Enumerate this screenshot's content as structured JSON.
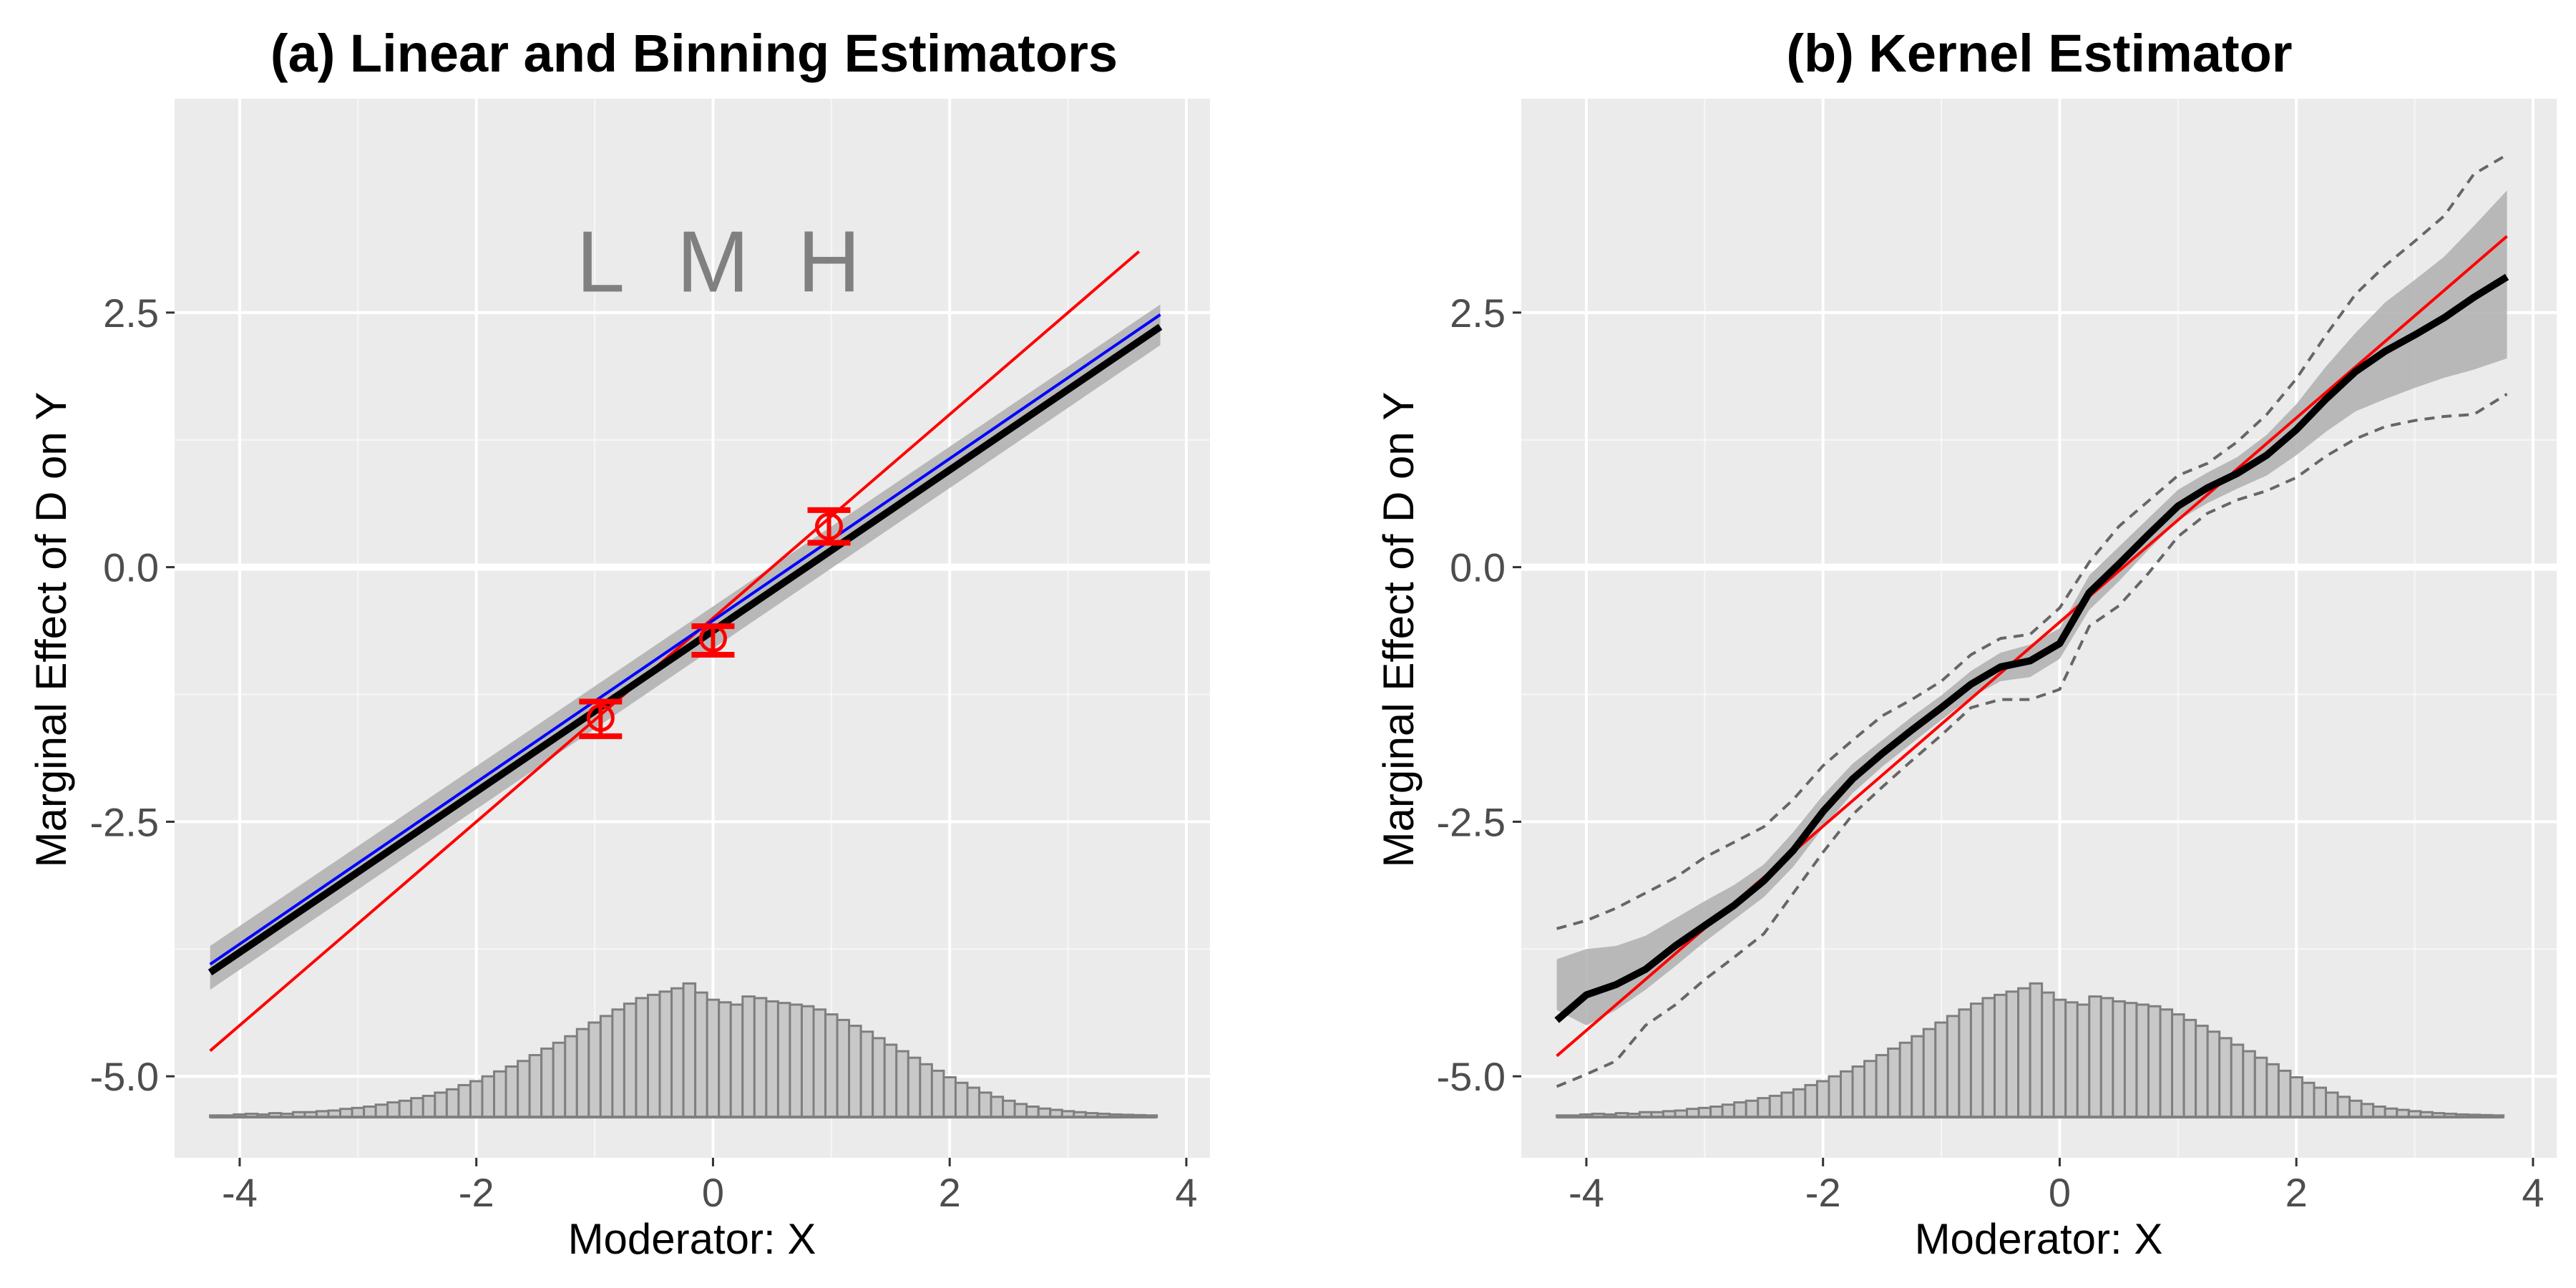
{
  "colors": {
    "panel_bg": "#ebebeb",
    "grid_major": "#ffffff",
    "estimate": "#000000",
    "ci_band": "#b3b3b3",
    "true_effect": "#ff0000",
    "linear_fit": "#0000ff",
    "hist_fill": "#c8c8c8",
    "hist_edge": "#7f7f7f",
    "bin_label": "#808080",
    "dashed_band": "#666666"
  },
  "chart_data": [
    {
      "type": "line",
      "title": "(a) Linear and Binning Estimators",
      "xlabel": "Moderator: X",
      "ylabel": "Marginal Effect of D on Y",
      "xlim": [
        -4.55,
        4.2
      ],
      "ylim": [
        -5.8,
        4.6
      ],
      "xticks": [
        -4,
        -2,
        0,
        2,
        4
      ],
      "xtick_labels": [
        "-4",
        "-2",
        "0",
        "2",
        "4"
      ],
      "yticks": [
        -5,
        -2.5,
        0,
        2.5
      ],
      "ytick_labels": [
        "-5.0",
        "-2.5",
        "0.0",
        "2.5"
      ],
      "grid": true,
      "bin_labels": [
        {
          "text": "L",
          "x": -0.95,
          "y": 3.0
        },
        {
          "text": "M",
          "x": 0.0,
          "y": 3.0
        },
        {
          "text": "H",
          "x": 0.98,
          "y": 3.0
        }
      ],
      "ribbon": {
        "x": [
          -4.25,
          3.78
        ],
        "lower": [
          -4.15,
          2.18
        ],
        "upper": [
          -3.72,
          2.58
        ]
      },
      "estimate_line": {
        "x": [
          -4.25,
          3.78
        ],
        "y": [
          -3.98,
          2.36
        ]
      },
      "linear_fit_line": {
        "x": [
          -4.25,
          3.78
        ],
        "y": [
          -3.9,
          2.48
        ]
      },
      "true_line": {
        "x": [
          -4.25,
          3.6
        ],
        "y": [
          -4.75,
          3.1
        ]
      },
      "bin_estimates": [
        {
          "x": -0.95,
          "y": -1.48,
          "lower": -1.66,
          "upper": -1.32
        },
        {
          "x": 0.0,
          "y": -0.7,
          "lower": -0.86,
          "upper": -0.58
        },
        {
          "x": 0.98,
          "y": 0.4,
          "lower": 0.24,
          "upper": 0.56
        }
      ],
      "histogram": {
        "baseline": -5.4,
        "bin_start": -4.25,
        "bin_width": 0.1,
        "heights": [
          0.005,
          0.005,
          0.008,
          0.01,
          0.008,
          0.012,
          0.01,
          0.015,
          0.015,
          0.018,
          0.02,
          0.025,
          0.028,
          0.032,
          0.038,
          0.045,
          0.05,
          0.058,
          0.065,
          0.075,
          0.085,
          0.098,
          0.11,
          0.125,
          0.14,
          0.155,
          0.172,
          0.19,
          0.21,
          0.228,
          0.248,
          0.27,
          0.29,
          0.31,
          0.33,
          0.348,
          0.365,
          0.375,
          0.385,
          0.395,
          0.41,
          0.382,
          0.36,
          0.352,
          0.345,
          0.37,
          0.365,
          0.355,
          0.35,
          0.345,
          0.34,
          0.33,
          0.315,
          0.298,
          0.28,
          0.262,
          0.242,
          0.222,
          0.202,
          0.182,
          0.162,
          0.142,
          0.122,
          0.105,
          0.09,
          0.075,
          0.062,
          0.05,
          0.04,
          0.032,
          0.026,
          0.022,
          0.018,
          0.015,
          0.012,
          0.01,
          0.008,
          0.007,
          0.006,
          0.005
        ]
      }
    },
    {
      "type": "line",
      "title": "(b) Kernel Estimator",
      "xlabel": "Moderator: X",
      "ylabel": "Marginal Effect of D on Y",
      "xlim": [
        -4.55,
        4.2
      ],
      "ylim": [
        -5.8,
        4.6
      ],
      "xticks": [
        -4,
        -2,
        0,
        2,
        4
      ],
      "xtick_labels": [
        "-4",
        "-2",
        "0",
        "2",
        "4"
      ],
      "yticks": [
        -5,
        -2.5,
        0,
        2.5
      ],
      "ytick_labels": [
        "-5.0",
        "-2.5",
        "0.0",
        "2.5"
      ],
      "grid": true,
      "true_line": {
        "x": [
          -4.25,
          3.78
        ],
        "y": [
          -4.8,
          3.25
        ]
      },
      "kernel": {
        "x": [
          -4.25,
          -4.0,
          -3.75,
          -3.5,
          -3.25,
          -3.0,
          -2.75,
          -2.5,
          -2.25,
          -2.0,
          -1.75,
          -1.5,
          -1.25,
          -1.0,
          -0.75,
          -0.5,
          -0.25,
          0.0,
          0.25,
          0.5,
          0.75,
          1.0,
          1.25,
          1.5,
          1.75,
          2.0,
          2.25,
          2.5,
          2.75,
          3.0,
          3.25,
          3.5,
          3.78
        ],
        "estimate": [
          -4.45,
          -4.2,
          -4.1,
          -3.95,
          -3.72,
          -3.52,
          -3.32,
          -3.08,
          -2.78,
          -2.4,
          -2.08,
          -1.83,
          -1.6,
          -1.38,
          -1.15,
          -0.98,
          -0.92,
          -0.75,
          -0.25,
          0.03,
          0.32,
          0.6,
          0.78,
          0.92,
          1.1,
          1.35,
          1.65,
          1.92,
          2.12,
          2.28,
          2.45,
          2.65,
          2.85
        ],
        "lower": [
          -4.35,
          -4.5,
          -4.35,
          -4.15,
          -3.92,
          -3.68,
          -3.46,
          -3.24,
          -2.94,
          -2.56,
          -2.22,
          -1.96,
          -1.73,
          -1.5,
          -1.28,
          -1.12,
          -1.08,
          -0.9,
          -0.42,
          -0.14,
          0.17,
          0.46,
          0.63,
          0.77,
          0.9,
          1.1,
          1.33,
          1.53,
          1.65,
          1.76,
          1.86,
          1.94,
          2.05
        ],
        "upper": [
          -3.85,
          -3.75,
          -3.72,
          -3.62,
          -3.45,
          -3.28,
          -3.12,
          -2.92,
          -2.6,
          -2.24,
          -1.93,
          -1.7,
          -1.47,
          -1.26,
          -1.02,
          -0.84,
          -0.76,
          -0.6,
          -0.08,
          0.2,
          0.48,
          0.76,
          0.93,
          1.08,
          1.3,
          1.6,
          1.97,
          2.3,
          2.6,
          2.82,
          3.05,
          3.35,
          3.7
        ],
        "dashed_lower": [
          -5.1,
          -4.98,
          -4.85,
          -4.5,
          -4.3,
          -4.05,
          -3.83,
          -3.6,
          -3.2,
          -2.8,
          -2.43,
          -2.16,
          -1.9,
          -1.65,
          -1.38,
          -1.3,
          -1.3,
          -1.2,
          -0.58,
          -0.38,
          -0.06,
          0.3,
          0.53,
          0.66,
          0.75,
          0.88,
          1.09,
          1.26,
          1.38,
          1.44,
          1.48,
          1.5,
          1.7
        ],
        "dashed_upper": [
          -3.55,
          -3.47,
          -3.35,
          -3.2,
          -3.05,
          -2.85,
          -2.7,
          -2.55,
          -2.28,
          -1.95,
          -1.7,
          -1.46,
          -1.3,
          -1.12,
          -0.86,
          -0.7,
          -0.66,
          -0.4,
          0.05,
          0.4,
          0.65,
          0.9,
          1.02,
          1.23,
          1.5,
          1.85,
          2.28,
          2.68,
          2.96,
          3.2,
          3.45,
          3.86,
          4.05
        ]
      },
      "histogram": {
        "baseline": -5.4,
        "bin_start": -4.25,
        "bin_width": 0.1,
        "heights": [
          0.005,
          0.005,
          0.008,
          0.01,
          0.008,
          0.012,
          0.01,
          0.015,
          0.015,
          0.018,
          0.02,
          0.025,
          0.028,
          0.032,
          0.038,
          0.045,
          0.05,
          0.058,
          0.065,
          0.075,
          0.085,
          0.098,
          0.11,
          0.125,
          0.14,
          0.155,
          0.172,
          0.19,
          0.21,
          0.228,
          0.248,
          0.27,
          0.29,
          0.31,
          0.33,
          0.348,
          0.365,
          0.375,
          0.385,
          0.395,
          0.41,
          0.382,
          0.36,
          0.352,
          0.345,
          0.37,
          0.365,
          0.355,
          0.35,
          0.345,
          0.34,
          0.33,
          0.315,
          0.298,
          0.28,
          0.262,
          0.242,
          0.222,
          0.202,
          0.182,
          0.162,
          0.142,
          0.122,
          0.105,
          0.09,
          0.075,
          0.062,
          0.05,
          0.04,
          0.032,
          0.026,
          0.022,
          0.018,
          0.015,
          0.012,
          0.01,
          0.008,
          0.007,
          0.006,
          0.005
        ]
      }
    }
  ]
}
